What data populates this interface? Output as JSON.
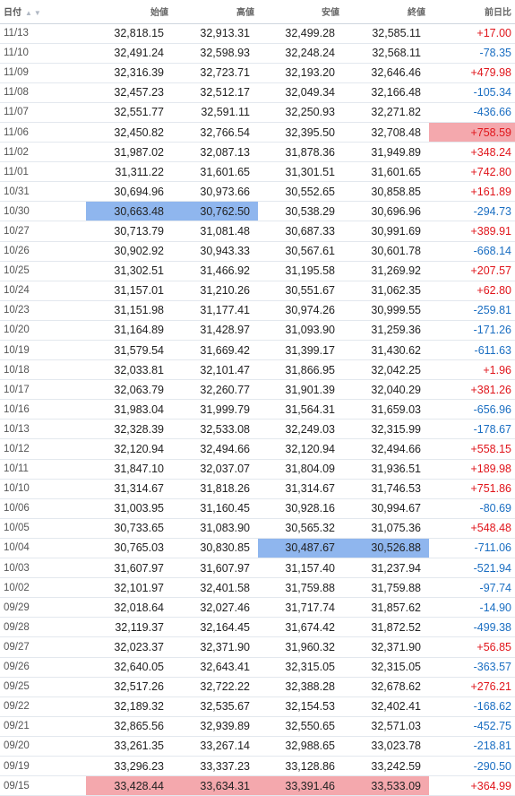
{
  "header": {
    "date": "日付",
    "open": "始値",
    "high": "高値",
    "low": "安値",
    "close": "終値",
    "change": "前日比"
  },
  "colors": {
    "positive": "#e0151b",
    "negative": "#1a6ec2",
    "highlight_red": "#f4a8ad",
    "highlight_blue": "#8fb6ee"
  },
  "rows": [
    {
      "date": "11/13",
      "open": "32,818.15",
      "high": "32,913.31",
      "low": "32,499.28",
      "close": "32,585.11",
      "change": "+17.00",
      "hl": {}
    },
    {
      "date": "11/10",
      "open": "32,491.24",
      "high": "32,598.93",
      "low": "32,248.24",
      "close": "32,568.11",
      "change": "-78.35",
      "hl": {}
    },
    {
      "date": "11/09",
      "open": "32,316.39",
      "high": "32,723.71",
      "low": "32,193.20",
      "close": "32,646.46",
      "change": "+479.98",
      "hl": {}
    },
    {
      "date": "11/08",
      "open": "32,457.23",
      "high": "32,512.17",
      "low": "32,049.34",
      "close": "32,166.48",
      "change": "-105.34",
      "hl": {}
    },
    {
      "date": "11/07",
      "open": "32,551.77",
      "high": "32,591.11",
      "low": "32,250.93",
      "close": "32,271.82",
      "change": "-436.66",
      "hl": {}
    },
    {
      "date": "11/06",
      "open": "32,450.82",
      "high": "32,766.54",
      "low": "32,395.50",
      "close": "32,708.48",
      "change": "+758.59",
      "hl": {
        "change": "red"
      }
    },
    {
      "date": "11/02",
      "open": "31,987.02",
      "high": "32,087.13",
      "low": "31,878.36",
      "close": "31,949.89",
      "change": "+348.24",
      "hl": {}
    },
    {
      "date": "11/01",
      "open": "31,311.22",
      "high": "31,601.65",
      "low": "31,301.51",
      "close": "31,601.65",
      "change": "+742.80",
      "hl": {}
    },
    {
      "date": "10/31",
      "open": "30,694.96",
      "high": "30,973.66",
      "low": "30,552.65",
      "close": "30,858.85",
      "change": "+161.89",
      "hl": {}
    },
    {
      "date": "10/30",
      "open": "30,663.48",
      "high": "30,762.50",
      "low": "30,538.29",
      "close": "30,696.96",
      "change": "-294.73",
      "hl": {
        "open": "blue",
        "high": "blue"
      }
    },
    {
      "date": "10/27",
      "open": "30,713.79",
      "high": "31,081.48",
      "low": "30,687.33",
      "close": "30,991.69",
      "change": "+389.91",
      "hl": {}
    },
    {
      "date": "10/26",
      "open": "30,902.92",
      "high": "30,943.33",
      "low": "30,567.61",
      "close": "30,601.78",
      "change": "-668.14",
      "hl": {}
    },
    {
      "date": "10/25",
      "open": "31,302.51",
      "high": "31,466.92",
      "low": "31,195.58",
      "close": "31,269.92",
      "change": "+207.57",
      "hl": {}
    },
    {
      "date": "10/24",
      "open": "31,157.01",
      "high": "31,210.26",
      "low": "30,551.67",
      "close": "31,062.35",
      "change": "+62.80",
      "hl": {}
    },
    {
      "date": "10/23",
      "open": "31,151.98",
      "high": "31,177.41",
      "low": "30,974.26",
      "close": "30,999.55",
      "change": "-259.81",
      "hl": {}
    },
    {
      "date": "10/20",
      "open": "31,164.89",
      "high": "31,428.97",
      "low": "31,093.90",
      "close": "31,259.36",
      "change": "-171.26",
      "hl": {}
    },
    {
      "date": "10/19",
      "open": "31,579.54",
      "high": "31,669.42",
      "low": "31,399.17",
      "close": "31,430.62",
      "change": "-611.63",
      "hl": {}
    },
    {
      "date": "10/18",
      "open": "32,033.81",
      "high": "32,101.47",
      "low": "31,866.95",
      "close": "32,042.25",
      "change": "+1.96",
      "hl": {}
    },
    {
      "date": "10/17",
      "open": "32,063.79",
      "high": "32,260.77",
      "low": "31,901.39",
      "close": "32,040.29",
      "change": "+381.26",
      "hl": {}
    },
    {
      "date": "10/16",
      "open": "31,983.04",
      "high": "31,999.79",
      "low": "31,564.31",
      "close": "31,659.03",
      "change": "-656.96",
      "hl": {}
    },
    {
      "date": "10/13",
      "open": "32,328.39",
      "high": "32,533.08",
      "low": "32,249.03",
      "close": "32,315.99",
      "change": "-178.67",
      "hl": {}
    },
    {
      "date": "10/12",
      "open": "32,120.94",
      "high": "32,494.66",
      "low": "32,120.94",
      "close": "32,494.66",
      "change": "+558.15",
      "hl": {}
    },
    {
      "date": "10/11",
      "open": "31,847.10",
      "high": "32,037.07",
      "low": "31,804.09",
      "close": "31,936.51",
      "change": "+189.98",
      "hl": {}
    },
    {
      "date": "10/10",
      "open": "31,314.67",
      "high": "31,818.26",
      "low": "31,314.67",
      "close": "31,746.53",
      "change": "+751.86",
      "hl": {}
    },
    {
      "date": "10/06",
      "open": "31,003.95",
      "high": "31,160.45",
      "low": "30,928.16",
      "close": "30,994.67",
      "change": "-80.69",
      "hl": {}
    },
    {
      "date": "10/05",
      "open": "30,733.65",
      "high": "31,083.90",
      "low": "30,565.32",
      "close": "31,075.36",
      "change": "+548.48",
      "hl": {}
    },
    {
      "date": "10/04",
      "open": "30,765.03",
      "high": "30,830.85",
      "low": "30,487.67",
      "close": "30,526.88",
      "change": "-711.06",
      "hl": {
        "low": "blue",
        "close": "blue"
      }
    },
    {
      "date": "10/03",
      "open": "31,607.97",
      "high": "31,607.97",
      "low": "31,157.40",
      "close": "31,237.94",
      "change": "-521.94",
      "hl": {}
    },
    {
      "date": "10/02",
      "open": "32,101.97",
      "high": "32,401.58",
      "low": "31,759.88",
      "close": "31,759.88",
      "change": "-97.74",
      "hl": {}
    },
    {
      "date": "09/29",
      "open": "32,018.64",
      "high": "32,027.46",
      "low": "31,717.74",
      "close": "31,857.62",
      "change": "-14.90",
      "hl": {}
    },
    {
      "date": "09/28",
      "open": "32,119.37",
      "high": "32,164.45",
      "low": "31,674.42",
      "close": "31,872.52",
      "change": "-499.38",
      "hl": {}
    },
    {
      "date": "09/27",
      "open": "32,023.37",
      "high": "32,371.90",
      "low": "31,960.32",
      "close": "32,371.90",
      "change": "+56.85",
      "hl": {}
    },
    {
      "date": "09/26",
      "open": "32,640.05",
      "high": "32,643.41",
      "low": "32,315.05",
      "close": "32,315.05",
      "change": "-363.57",
      "hl": {}
    },
    {
      "date": "09/25",
      "open": "32,517.26",
      "high": "32,722.22",
      "low": "32,388.28",
      "close": "32,678.62",
      "change": "+276.21",
      "hl": {}
    },
    {
      "date": "09/22",
      "open": "32,189.32",
      "high": "32,535.67",
      "low": "32,154.53",
      "close": "32,402.41",
      "change": "-168.62",
      "hl": {}
    },
    {
      "date": "09/21",
      "open": "32,865.56",
      "high": "32,939.89",
      "low": "32,550.65",
      "close": "32,571.03",
      "change": "-452.75",
      "hl": {}
    },
    {
      "date": "09/20",
      "open": "33,261.35",
      "high": "33,267.14",
      "low": "32,988.65",
      "close": "33,023.78",
      "change": "-218.81",
      "hl": {}
    },
    {
      "date": "09/19",
      "open": "33,296.23",
      "high": "33,337.23",
      "low": "33,128.86",
      "close": "33,242.59",
      "change": "-290.50",
      "hl": {}
    },
    {
      "date": "09/15",
      "open": "33,428.44",
      "high": "33,634.31",
      "low": "33,391.46",
      "close": "33,533.09",
      "change": "+364.99",
      "hl": {
        "open": "red",
        "high": "red",
        "low": "red",
        "close": "red"
      }
    }
  ]
}
